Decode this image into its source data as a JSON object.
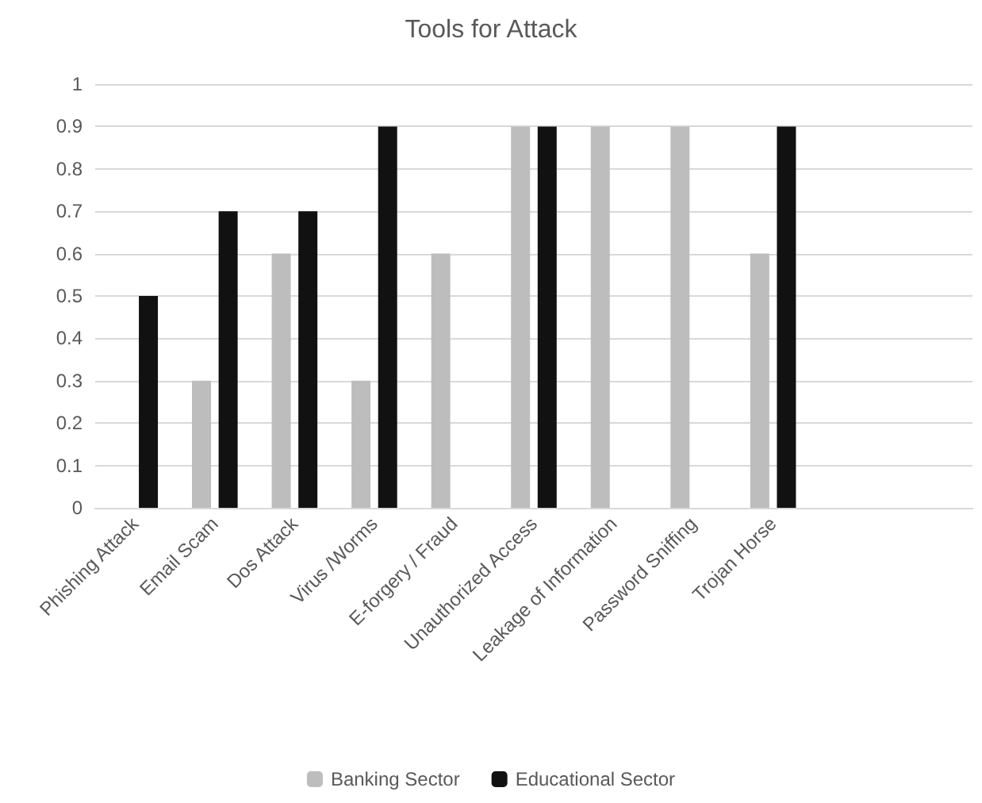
{
  "chart_data": {
    "type": "bar",
    "title": "Tools for Attack",
    "categories": [
      "Phishing Attack",
      "Email Scam",
      "Dos Attack",
      "Virus /Worms",
      "E-forgery / Fraud",
      "Unauthorized Access",
      "Leakage of Information",
      "Password Sniffing",
      "Trojan Horse",
      null,
      null
    ],
    "series": [
      {
        "name": "Banking Sector",
        "color": "#bdbdbd",
        "values": [
          null,
          0.3,
          0.6,
          0.3,
          0.6,
          0.9,
          0.9,
          0.9,
          0.6,
          null,
          null
        ]
      },
      {
        "name": "Educational Sector",
        "color": "#111111",
        "values": [
          0.5,
          0.7,
          0.7,
          0.9,
          null,
          0.9,
          null,
          null,
          0.9,
          null,
          null
        ]
      }
    ],
    "ylim": [
      0,
      1
    ],
    "yticks": [
      0,
      0.1,
      0.2,
      0.3,
      0.4,
      0.5,
      0.6,
      0.7,
      0.8,
      0.9,
      1
    ],
    "grid": "y",
    "legend": "bottom"
  }
}
